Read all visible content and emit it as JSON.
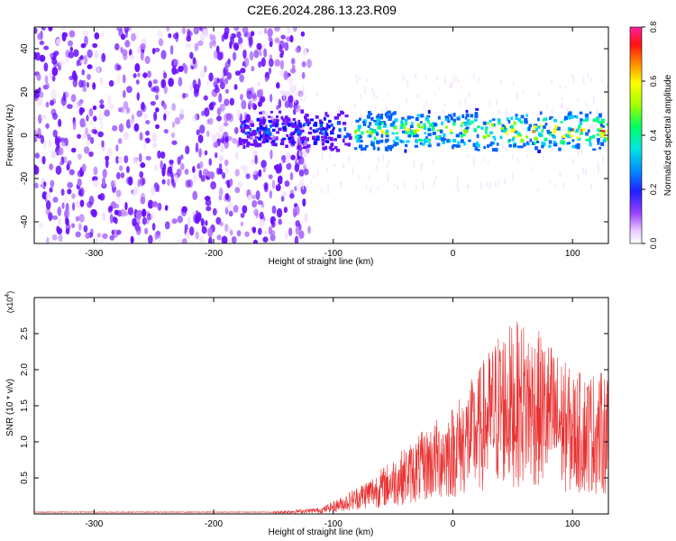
{
  "title": "C2E6.2024.286.13.23.R09",
  "colors": {
    "snr_line": "#e83030",
    "spectrogram_noise": "#7a2be0",
    "colormap": [
      "#ffffff",
      "#f2e0ff",
      "#b070ff",
      "#6a10ff",
      "#1010ff",
      "#0060ff",
      "#00d0ff",
      "#00ff80",
      "#80ff00",
      "#ffff00",
      "#ff8000",
      "#ff0000",
      "#ff00ff"
    ]
  },
  "chart_data": [
    {
      "type": "heatmap",
      "xlabel": "Height of straight line (km)",
      "ylabel": "Frequency (Hz)",
      "xlim": [
        -350,
        130
      ],
      "ylim": [
        -50,
        50
      ],
      "xticks": [
        "-300",
        "-200",
        "-100",
        "0",
        "100"
      ],
      "yticks": [
        "40",
        "20",
        "0",
        "-20",
        "-40"
      ],
      "colorbar": {
        "label": "Normalized spectral amplitude",
        "range": [
          0.0,
          0.8
        ],
        "ticks": [
          "0.8",
          "0.6",
          "0.4",
          "0.2",
          "0.0"
        ]
      },
      "grid": false,
      "noise_region_x": [
        -350,
        -135
      ],
      "signal_band": {
        "x": [
          -180,
          130
        ],
        "center_hz": 2,
        "half_width_hz": 9
      }
    },
    {
      "type": "line",
      "xlabel": "Height of straight line (km)",
      "ylabel": "SNR (10 * v/v)",
      "multiplier": "(x10",
      "multiplier_exp": "4",
      "multiplier_close": ")",
      "xlim": [
        -350,
        130
      ],
      "ylim": [
        0,
        3.0
      ],
      "xticks": [
        "-300",
        "-200",
        "-100",
        "0",
        "100"
      ],
      "yticks": [
        "2.5",
        "2.0",
        "1.5",
        "1.0",
        "0.5"
      ],
      "grid": false,
      "envelope": [
        {
          "x": -350,
          "y": 0.02
        },
        {
          "x": -150,
          "y": 0.02
        },
        {
          "x": -110,
          "y": 0.05
        },
        {
          "x": -90,
          "y": 0.15
        },
        {
          "x": -60,
          "y": 0.35
        },
        {
          "x": -30,
          "y": 0.6
        },
        {
          "x": 0,
          "y": 0.85
        },
        {
          "x": 20,
          "y": 1.1
        },
        {
          "x": 40,
          "y": 1.45
        },
        {
          "x": 60,
          "y": 1.5
        },
        {
          "x": 80,
          "y": 1.35
        },
        {
          "x": 100,
          "y": 1.1
        },
        {
          "x": 130,
          "y": 1.1
        }
      ]
    }
  ]
}
